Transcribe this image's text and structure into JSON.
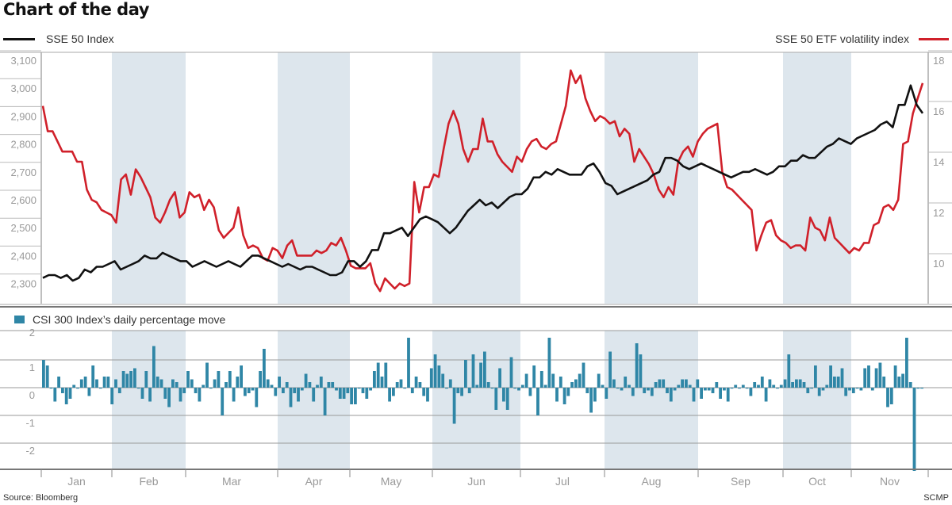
{
  "header": {
    "title": "Chart of the day"
  },
  "legend": {
    "left_series": "SSE 50 Index",
    "right_series": "SSE 50 ETF volatility index",
    "bar_series": "CSI 300 Index’s daily percentage move"
  },
  "footer": {
    "source": "Source: Bloomberg",
    "credit": "SCMP"
  },
  "colors": {
    "sse50_line": "#111111",
    "volatility_line": "#d0202a",
    "bars": "#2f86a6",
    "month_band": "#dde6ed",
    "grid": "#999999"
  },
  "chart_data": [
    {
      "type": "line",
      "title": "SSE 50 Index vs SSE 50 ETF volatility index",
      "categories": [
        "Jan",
        "Feb",
        "Mar",
        "Apr",
        "May",
        "Jun",
        "Jul",
        "Aug",
        "Sep",
        "Oct",
        "Nov"
      ],
      "left_axis": {
        "label": "SSE 50 Index",
        "ticks": [
          "3,100",
          "3,000",
          "2,900",
          "2,800",
          "2,700",
          "2,600",
          "2,500",
          "2,400",
          "2,300"
        ],
        "ylim": [
          2200,
          3130
        ]
      },
      "right_axis": {
        "label": "SSE 50 ETF volatility index",
        "ticks": [
          "18",
          "16",
          "14",
          "12",
          "10"
        ],
        "ylim": [
          8.3,
          18.3
        ]
      },
      "series": [
        {
          "name": "SSE 50 Index",
          "axis": "left",
          "monthly_approx": {
            "Jan": [
              2320,
              2330,
              2320,
              2350,
              2360
            ],
            "Feb": [
              2370,
              2360,
              2400,
              2390,
              2370
            ],
            "Mar": [
              2360,
              2370,
              2350,
              2360,
              2380
            ],
            "Apr": [
              2400,
              2390,
              2370,
              2360,
              2360
            ],
            "May": [
              2330,
              2380,
              2410,
              2480,
              2490
            ],
            "Jun": [
              2520,
              2540,
              2550,
              2590,
              2560
            ],
            "Jul": [
              2610,
              2650,
              2670,
              2660,
              2660
            ],
            "Aug": [
              2650,
              2620,
              2630,
              2680,
              2730
            ],
            "Sep": [
              2720,
              2700,
              2690,
              2700,
              2690
            ],
            "Oct": [
              2710,
              2720,
              2770,
              2800,
              2810
            ],
            "Nov": [
              2830,
              2860,
              2940,
              3010,
              2960
            ]
          },
          "values": [
            2320,
            2330,
            2330,
            2320,
            2330,
            2310,
            2320,
            2350,
            2340,
            2360,
            2360,
            2370,
            2380,
            2350,
            2360,
            2370,
            2380,
            2400,
            2390,
            2390,
            2410,
            2400,
            2390,
            2380,
            2380,
            2360,
            2370,
            2380,
            2370,
            2360,
            2370,
            2380,
            2370,
            2360,
            2380,
            2400,
            2400,
            2390,
            2380,
            2370,
            2360,
            2370,
            2360,
            2350,
            2360,
            2360,
            2350,
            2340,
            2330,
            2330,
            2340,
            2380,
            2380,
            2360,
            2380,
            2420,
            2420,
            2480,
            2480,
            2490,
            2500,
            2470,
            2500,
            2530,
            2540,
            2530,
            2520,
            2500,
            2480,
            2500,
            2530,
            2560,
            2580,
            2600,
            2580,
            2590,
            2570,
            2590,
            2610,
            2620,
            2620,
            2640,
            2680,
            2680,
            2700,
            2690,
            2710,
            2700,
            2690,
            2690,
            2690,
            2720,
            2730,
            2700,
            2660,
            2650,
            2620,
            2630,
            2640,
            2650,
            2660,
            2670,
            2690,
            2700,
            2750,
            2750,
            2740,
            2720,
            2710,
            2720,
            2730,
            2720,
            2710,
            2700,
            2690,
            2680,
            2690,
            2700,
            2700,
            2710,
            2700,
            2690,
            2700,
            2720,
            2720,
            2740,
            2740,
            2760,
            2750,
            2750,
            2770,
            2790,
            2800,
            2820,
            2810,
            2800,
            2820,
            2830,
            2840,
            2850,
            2870,
            2880,
            2860,
            2940,
            2940,
            3010,
            2940,
            2910
          ]
        },
        {
          "name": "SSE 50 ETF volatility index",
          "axis": "right",
          "values": [
            16.2,
            15.2,
            15.2,
            14.8,
            14.4,
            14.4,
            14.4,
            14.0,
            14.0,
            12.9,
            12.5,
            12.4,
            12.1,
            12.0,
            11.9,
            11.6,
            13.3,
            13.5,
            12.7,
            13.7,
            13.4,
            13.0,
            12.6,
            11.8,
            11.6,
            12.0,
            12.5,
            12.8,
            11.8,
            12.0,
            12.8,
            12.6,
            12.7,
            12.1,
            12.5,
            12.2,
            11.3,
            11.0,
            11.2,
            11.4,
            12.2,
            11.1,
            10.6,
            10.7,
            10.6,
            10.2,
            10.1,
            10.6,
            10.5,
            10.2,
            10.7,
            10.9,
            10.3,
            10.3,
            10.3,
            10.3,
            10.5,
            10.4,
            10.5,
            10.8,
            10.7,
            11.0,
            10.5,
            9.9,
            9.8,
            9.8,
            9.8,
            10.0,
            9.2,
            8.9,
            9.4,
            9.2,
            9.0,
            9.2,
            9.1,
            9.2,
            13.2,
            12.0,
            13.0,
            13.0,
            13.5,
            13.4,
            14.5,
            15.5,
            16.0,
            15.5,
            14.5,
            14.0,
            14.5,
            14.5,
            15.7,
            14.8,
            14.8,
            14.3,
            14.0,
            13.8,
            13.6,
            14.2,
            14.0,
            14.5,
            14.8,
            14.9,
            14.6,
            14.5,
            14.7,
            14.8,
            15.5,
            16.2,
            17.6,
            17.1,
            17.4,
            16.5,
            16.0,
            15.6,
            15.8,
            15.7,
            15.5,
            15.6,
            15.0,
            15.3,
            15.1,
            14.0,
            14.5,
            14.2,
            13.9,
            13.5,
            12.9,
            12.6,
            13.0,
            12.7,
            14.0,
            14.4,
            14.6,
            14.2,
            14.8,
            15.1,
            15.3,
            15.4,
            15.5,
            13.6,
            13.0,
            12.9,
            12.7,
            12.5,
            12.3,
            12.1,
            10.5,
            11.1,
            11.6,
            11.7,
            11.1,
            10.9,
            10.8,
            10.6,
            10.7,
            10.7,
            10.5,
            11.8,
            11.4,
            11.3,
            10.9,
            11.8,
            11.0,
            10.8,
            10.6,
            10.4,
            10.6,
            10.5,
            10.8,
            10.8,
            11.5,
            11.6,
            12.2,
            12.3,
            12.1,
            12.5,
            14.7,
            14.8,
            15.9,
            16.5,
            17.1
          ]
        }
      ],
      "shaded_months": [
        "Feb",
        "Apr",
        "Jun",
        "Aug",
        "Oct"
      ],
      "grid": true,
      "legend_position": "top"
    },
    {
      "type": "bar",
      "title": "CSI 300 Index’s daily percentage move",
      "categories": [
        "Jan",
        "Feb",
        "Mar",
        "Apr",
        "May",
        "Jun",
        "Jul",
        "Aug",
        "Sep",
        "Oct",
        "Nov"
      ],
      "ylabel": "%",
      "yticks": [
        "2",
        "1",
        "0",
        "-1",
        "-2"
      ],
      "ylim": [
        -3,
        2.2
      ],
      "series": [
        {
          "name": "CSI 300 Index’s daily percentage move",
          "values": [
            1.0,
            0.8,
            0.0,
            -0.5,
            0.4,
            -0.2,
            -0.6,
            -0.4,
            0.1,
            0.0,
            0.3,
            0.4,
            -0.3,
            0.8,
            0.3,
            0.0,
            0.4,
            0.4,
            -0.6,
            0.3,
            -0.2,
            0.6,
            0.5,
            0.6,
            0.7,
            0.0,
            -0.4,
            0.6,
            -0.5,
            1.5,
            0.4,
            0.3,
            -0.4,
            -0.7,
            0.3,
            0.2,
            -0.5,
            -0.2,
            0.6,
            0.3,
            -0.2,
            -0.5,
            0.1,
            0.9,
            0.0,
            0.3,
            0.6,
            -1.0,
            0.2,
            0.6,
            -0.5,
            0.4,
            0.8,
            -0.3,
            -0.2,
            -0.1,
            -0.7,
            0.6,
            1.4,
            0.3,
            0.1,
            -0.3,
            0.4,
            -0.2,
            0.2,
            -0.7,
            -0.2,
            -0.5,
            -0.1,
            0.5,
            0.2,
            -0.5,
            0.1,
            0.4,
            -1.0,
            0.2,
            0.2,
            -0.1,
            -0.4,
            -0.4,
            -0.2,
            -0.6,
            -0.6,
            0.0,
            -0.2,
            -0.4,
            -0.1,
            0.6,
            0.9,
            0.4,
            0.9,
            -0.5,
            -0.3,
            0.2,
            0.3,
            0.0,
            1.8,
            -0.2,
            0.4,
            0.2,
            -0.3,
            -0.5,
            0.7,
            1.2,
            0.8,
            0.5,
            0.0,
            0.3,
            -1.3,
            -0.2,
            -0.3,
            1.0,
            -0.2,
            1.2,
            0.1,
            0.9,
            1.3,
            0.2,
            0.0,
            -0.8,
            0.7,
            -0.5,
            -0.8,
            1.1,
            0.0,
            -0.1,
            0.1,
            0.5,
            -0.3,
            0.8,
            -1.0,
            0.6,
            0.1,
            1.8,
            0.5,
            -0.5,
            0.4,
            -0.6,
            -0.3,
            0.2,
            0.3,
            0.5,
            0.9,
            -0.2,
            -0.9,
            -0.5,
            0.5,
            0.1,
            -0.4,
            1.3,
            0.3,
            0.0,
            -0.1,
            0.4,
            0.1,
            -0.3,
            1.6,
            1.2,
            -0.2,
            -0.1,
            -0.3,
            0.2,
            0.3,
            0.3,
            -0.2,
            -0.5,
            -0.1,
            0.1,
            0.3,
            0.3,
            0.1,
            -0.5,
            0.3,
            -0.4,
            -0.1,
            -0.1,
            -0.2,
            0.2,
            -0.4,
            -0.1,
            -0.5,
            0.0,
            0.1,
            0.0,
            0.1,
            0.0,
            -0.3,
            0.2,
            0.1,
            0.4,
            -0.5,
            0.3,
            0.1,
            0.0,
            0.1,
            0.3,
            1.2,
            0.2,
            0.3,
            0.3,
            0.2,
            -0.2,
            0.0,
            0.8,
            -0.3,
            -0.1,
            0.1,
            0.8,
            0.4,
            0.4,
            0.7,
            -0.3,
            -0.1,
            -0.2,
            0.0,
            -0.1,
            0.7,
            0.8,
            -0.1,
            0.7,
            0.9,
            0.4,
            -0.7,
            -0.6,
            0.8,
            0.4,
            0.5,
            1.8,
            0.2,
            -3.0,
            0.0,
            0.0
          ]
        }
      ]
    }
  ],
  "axes": {
    "months": [
      "Jan",
      "Feb",
      "Mar",
      "Apr",
      "May",
      "Jun",
      "Jul",
      "Aug",
      "Sep",
      "Oct",
      "Nov"
    ],
    "left_ticks": [
      "3,100",
      "3,000",
      "2,900",
      "2,800",
      "2,700",
      "2,600",
      "2,500",
      "2,400",
      "2,300"
    ],
    "right_ticks": [
      "18",
      "16",
      "14",
      "12",
      "10"
    ],
    "bar_ticks": [
      "2",
      "1",
      "0",
      "-1",
      "-2"
    ]
  }
}
